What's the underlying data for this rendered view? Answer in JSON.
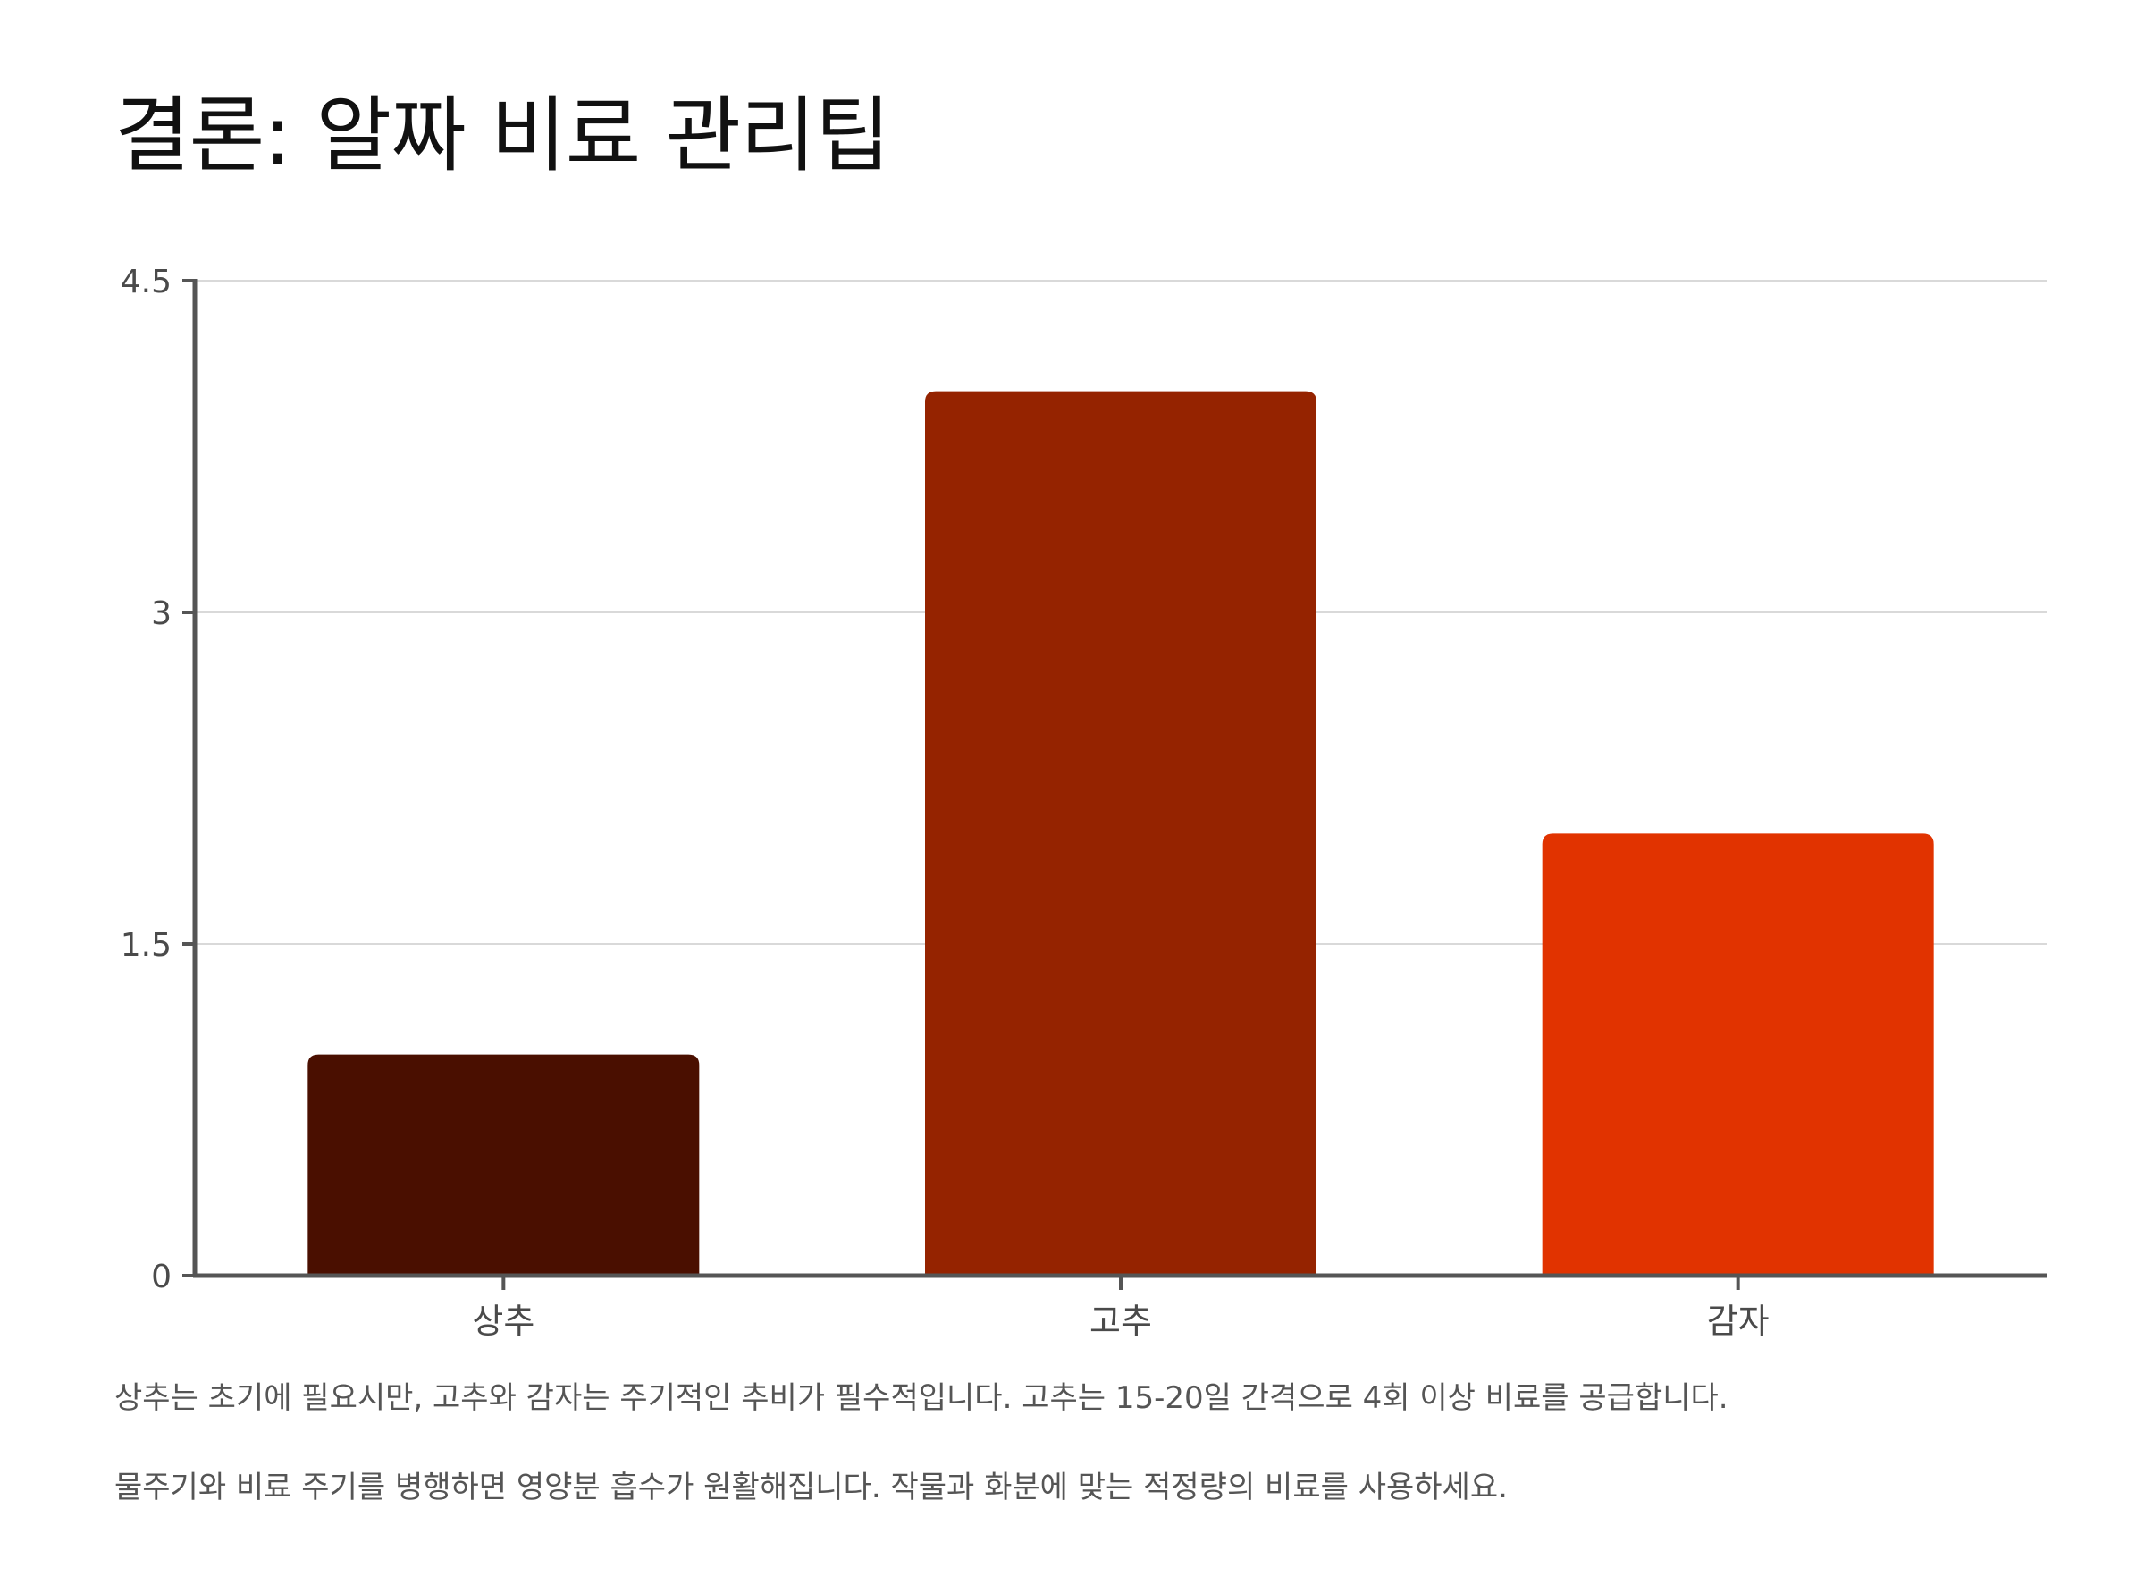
{
  "title": "결론: 알짜 비료 관리팁",
  "chart_data": {
    "type": "bar",
    "categories": [
      "상추",
      "고추",
      "감자"
    ],
    "values": [
      1,
      4,
      2
    ],
    "colors": [
      "#4a0f00",
      "#952300",
      "#e13300"
    ],
    "yticks": [
      "0",
      "1.5",
      "3",
      "4.5"
    ],
    "ytick_values": [
      0,
      1.5,
      3,
      4.5
    ],
    "ylim": [
      0,
      4.5
    ],
    "grid": true,
    "xlabel": "",
    "ylabel": ""
  },
  "notes": [
    "상추는 초기에 필요시만, 고추와 감자는 주기적인 추비가 필수적입니다. 고추는 15-20일 간격으로 4회 이상 비료를 공급합니다.",
    "물주기와 비료 주기를 병행하면 영양분 흡수가 원활해집니다. 작물과 화분에 맞는 적정량의 비료를 사용하세요."
  ]
}
